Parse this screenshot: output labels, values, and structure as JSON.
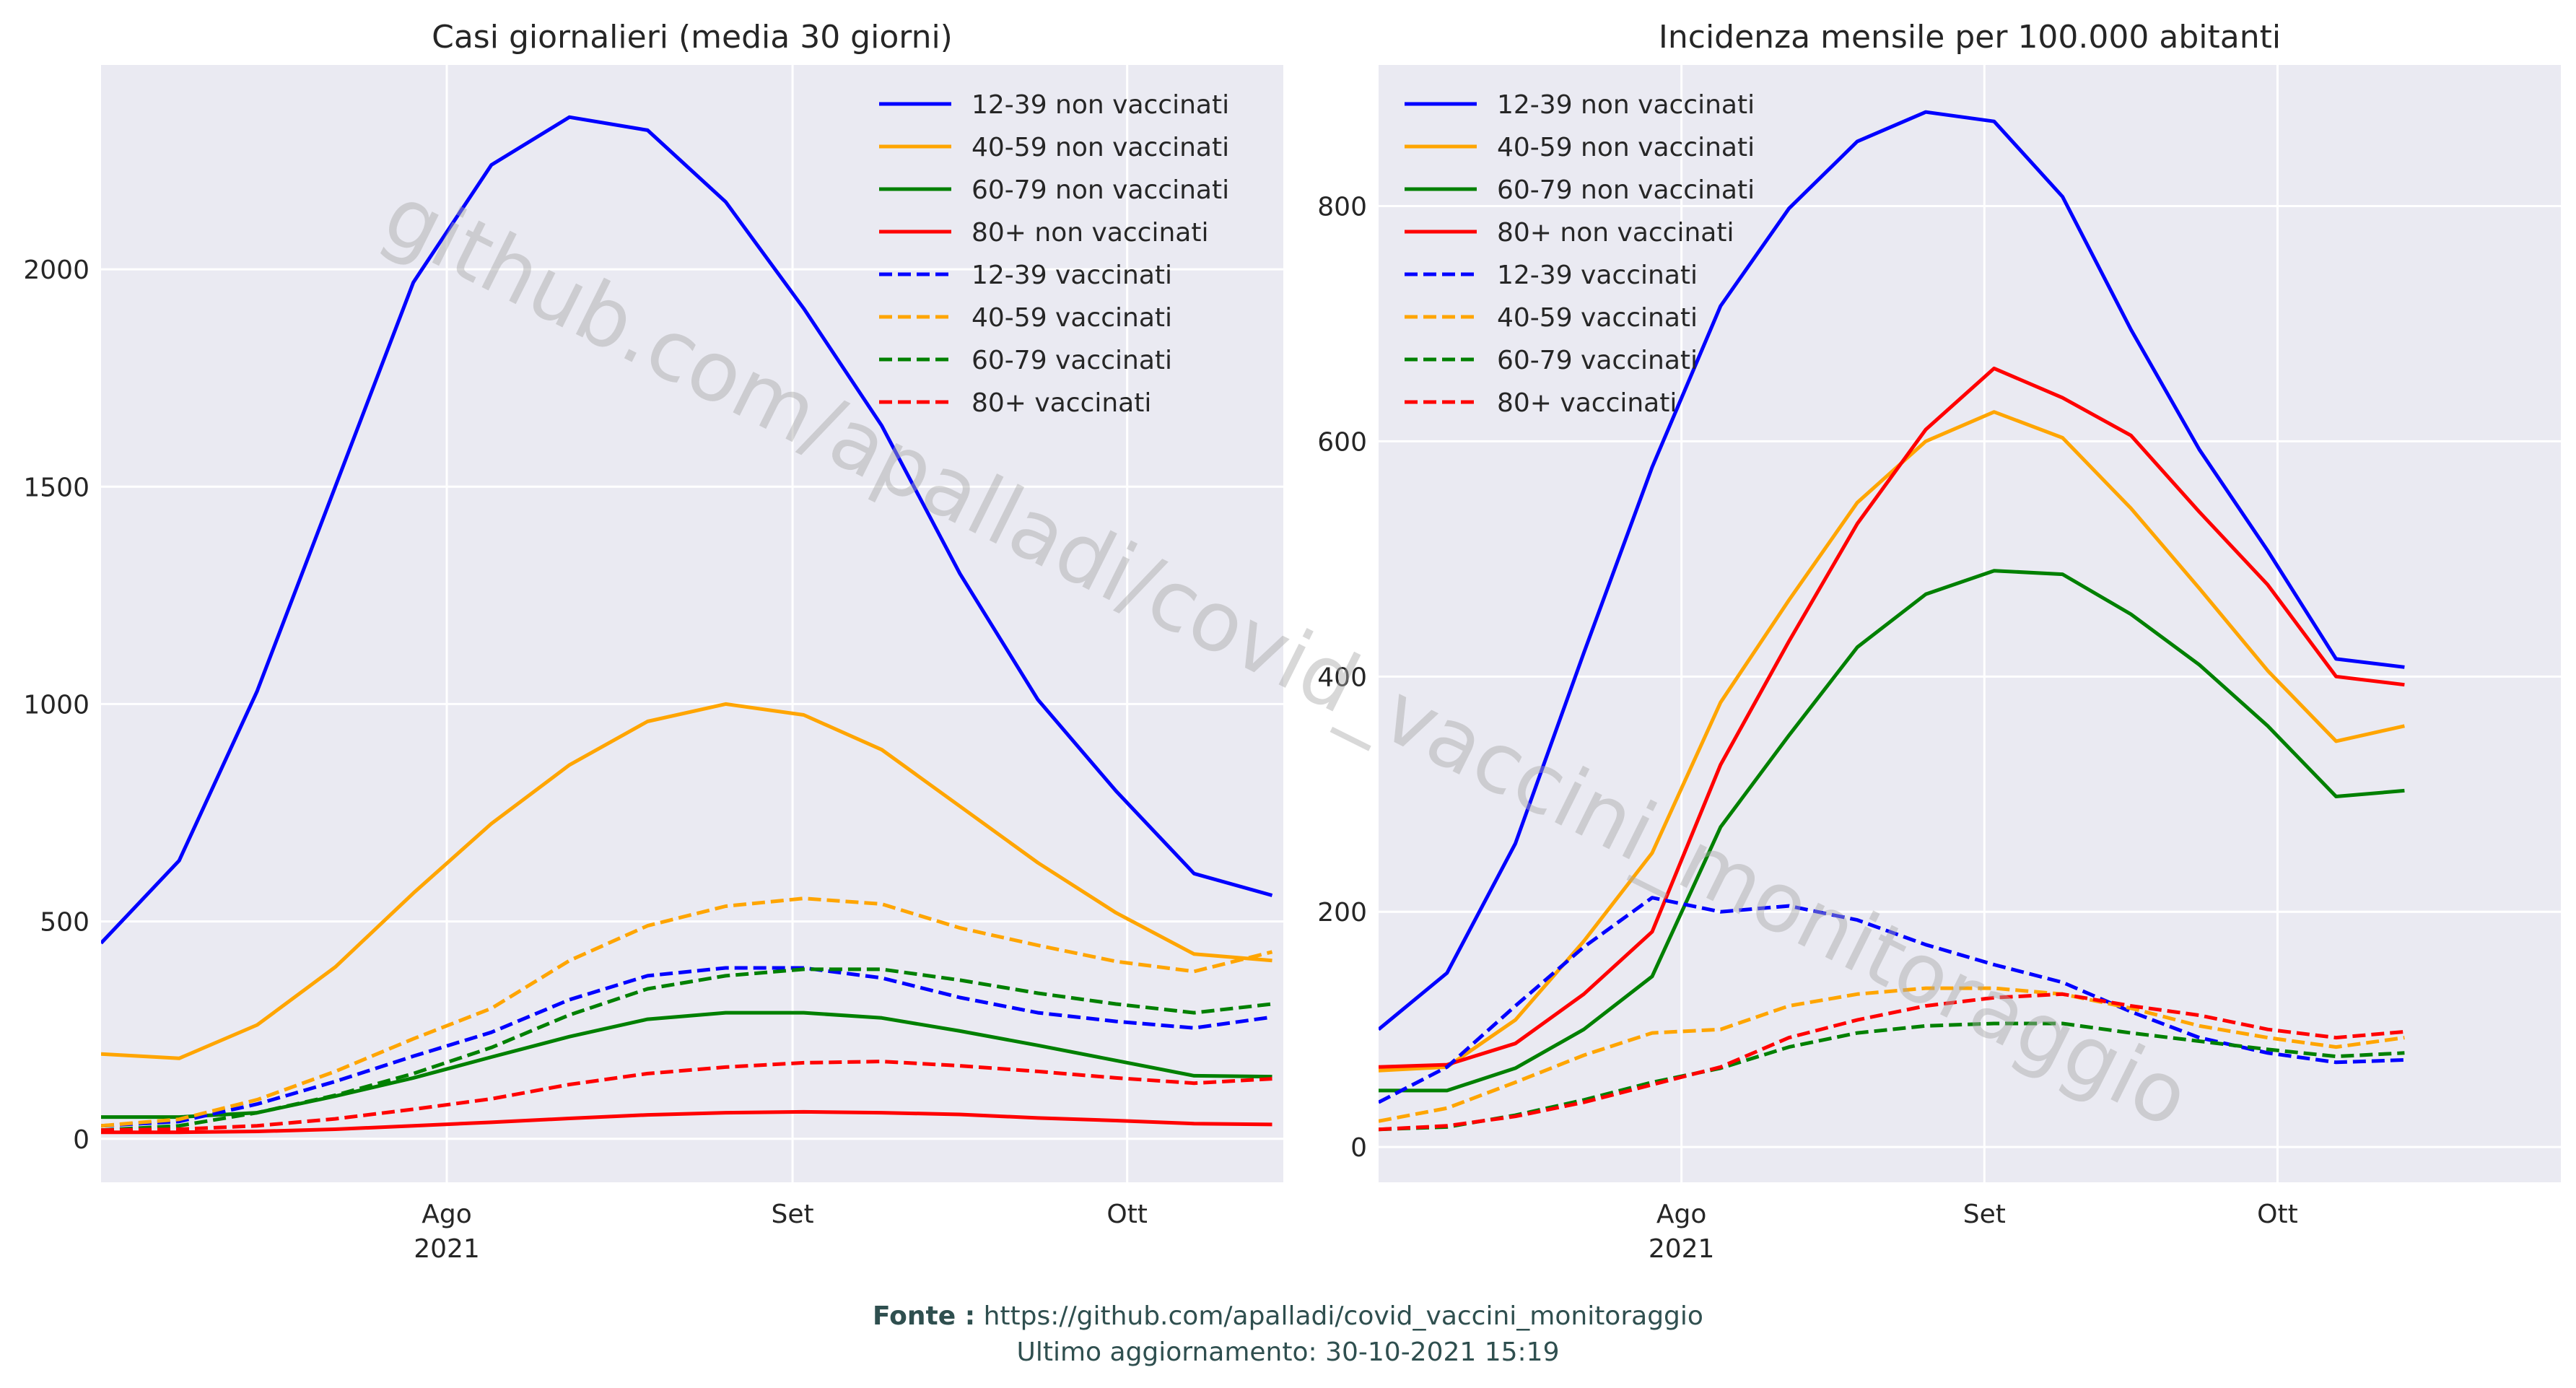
{
  "colors": {
    "12-39": "#0000ff",
    "40-59": "#ffa500",
    "60-79": "#008000",
    "80+": "#ff0000",
    "plot_bg": "#eaeaf2",
    "grid": "#ffffff",
    "footer_text": "#2f4f4f",
    "watermark": "#a9a9a9"
  },
  "watermark": "github.com/apalladi/covid_vaccini_monitoraggio",
  "footer": {
    "source_label": "Fonte :",
    "source_url": "https://github.com/apalladi/covid_vaccini_monitoraggio",
    "updated": "Ultimo aggiornamento: 30-10-2021 15:19"
  },
  "chart_data": [
    {
      "type": "line",
      "title": "Casi giornalieri (media 30 giorni)",
      "x_dates": [
        "2021-07-01",
        "2021-07-08",
        "2021-07-15",
        "2021-07-22",
        "2021-07-29",
        "2021-08-05",
        "2021-08-12",
        "2021-08-19",
        "2021-08-26",
        "2021-09-02",
        "2021-09-09",
        "2021-09-16",
        "2021-09-23",
        "2021-09-30",
        "2021-10-07",
        "2021-10-14",
        "2021-10-21",
        "2021-10-28"
      ],
      "xlim": [
        "2021-07-01",
        "2021-10-15"
      ],
      "ylim": [
        -100,
        2470
      ],
      "yticks": [
        0,
        500,
        1000,
        1500,
        2000
      ],
      "xticks": [
        {
          "date": "2021-08-01",
          "label": "Ago",
          "sublabel": "2021"
        },
        {
          "date": "2021-09-01",
          "label": "Set",
          "sublabel": ""
        },
        {
          "date": "2021-10-01",
          "label": "Ott",
          "sublabel": ""
        }
      ],
      "legend_position": "upper-right",
      "series": [
        {
          "name": "12-39 non vaccinati",
          "group": "12-39",
          "dashed": false,
          "values": [
            450,
            640,
            1030,
            1500,
            1970,
            2240,
            2350,
            2320,
            2155,
            1910,
            1640,
            1300,
            1010,
            800,
            610,
            560,
            null,
            null
          ]
        },
        {
          "name": "40-59 non vaccinati",
          "group": "40-59",
          "dashed": false,
          "values": [
            195,
            185,
            262,
            395,
            565,
            725,
            860,
            960,
            1000,
            975,
            895,
            765,
            635,
            520,
            425,
            410,
            null,
            null
          ]
        },
        {
          "name": "60-79 non vaccinati",
          "group": "60-79",
          "dashed": false,
          "values": [
            50,
            50,
            60,
            98,
            140,
            188,
            235,
            275,
            290,
            290,
            278,
            248,
            215,
            180,
            145,
            143,
            null,
            null
          ]
        },
        {
          "name": "80+ non vaccinati",
          "group": "80+",
          "dashed": false,
          "values": [
            15,
            15,
            17,
            22,
            30,
            38,
            47,
            55,
            60,
            62,
            60,
            56,
            48,
            42,
            35,
            33,
            null,
            null
          ]
        },
        {
          "name": "12-39 vaccinati",
          "group": "12-39",
          "dashed": true,
          "values": [
            30,
            40,
            80,
            132,
            190,
            245,
            320,
            375,
            393,
            393,
            370,
            325,
            290,
            270,
            255,
            280,
            null,
            null
          ]
        },
        {
          "name": "40-59 vaccinati",
          "group": "40-59",
          "dashed": true,
          "values": [
            30,
            45,
            90,
            155,
            230,
            300,
            410,
            490,
            535,
            553,
            540,
            485,
            445,
            408,
            385,
            430,
            null,
            null
          ]
        },
        {
          "name": "60-79 vaccinati",
          "group": "60-79",
          "dashed": true,
          "values": [
            20,
            30,
            60,
            100,
            150,
            210,
            285,
            345,
            375,
            390,
            390,
            365,
            335,
            310,
            290,
            310,
            null,
            null
          ]
        },
        {
          "name": "80+ vaccinati",
          "group": "80+",
          "dashed": true,
          "values": [
            20,
            22,
            30,
            46,
            68,
            92,
            125,
            150,
            165,
            175,
            178,
            168,
            155,
            140,
            128,
            138,
            null,
            null
          ]
        }
      ]
    },
    {
      "type": "line",
      "title": "Incidenza mensile per 100.000 abitanti",
      "x_dates": [
        "2021-07-01",
        "2021-07-08",
        "2021-07-15",
        "2021-07-22",
        "2021-07-29",
        "2021-08-05",
        "2021-08-12",
        "2021-08-19",
        "2021-08-26",
        "2021-09-02",
        "2021-09-09",
        "2021-09-16",
        "2021-09-23",
        "2021-09-30",
        "2021-10-07",
        "2021-10-14",
        "2021-10-21",
        "2021-10-28"
      ],
      "xlim": [
        "2021-07-01",
        "2021-10-30"
      ],
      "ylim": [
        -30,
        920
      ],
      "yticks": [
        0,
        200,
        400,
        600,
        800
      ],
      "xticks": [
        {
          "date": "2021-08-01",
          "label": "Ago",
          "sublabel": "2021"
        },
        {
          "date": "2021-09-01",
          "label": "Set",
          "sublabel": ""
        },
        {
          "date": "2021-10-01",
          "label": "Ott",
          "sublabel": ""
        }
      ],
      "legend_position": "upper-left",
      "series": [
        {
          "name": "12-39 non vaccinati",
          "group": "12-39",
          "dashed": false,
          "values": [
            100,
            148,
            258,
            420,
            578,
            715,
            798,
            855,
            880,
            872,
            808,
            695,
            593,
            507,
            415,
            408,
            null,
            null
          ]
        },
        {
          "name": "40-59 non vaccinati",
          "group": "40-59",
          "dashed": false,
          "values": [
            65,
            68,
            108,
            175,
            250,
            378,
            465,
            548,
            600,
            625,
            603,
            543,
            475,
            405,
            345,
            358,
            null,
            null
          ]
        },
        {
          "name": "60-79 non vaccinati",
          "group": "60-79",
          "dashed": false,
          "values": [
            48,
            48,
            67,
            100,
            145,
            272,
            350,
            425,
            470,
            490,
            487,
            453,
            410,
            358,
            298,
            303,
            null,
            null
          ]
        },
        {
          "name": "80+ non vaccinati",
          "group": "80+",
          "dashed": false,
          "values": [
            68,
            70,
            88,
            130,
            183,
            325,
            430,
            530,
            610,
            662,
            637,
            605,
            540,
            478,
            400,
            393,
            null,
            null
          ]
        },
        {
          "name": "12-39 vaccinati",
          "group": "12-39",
          "dashed": true,
          "values": [
            38,
            68,
            120,
            170,
            212,
            200,
            205,
            193,
            172,
            155,
            140,
            115,
            93,
            80,
            72,
            74,
            null,
            null
          ]
        },
        {
          "name": "40-59 vaccinati",
          "group": "40-59",
          "dashed": true,
          "values": [
            22,
            33,
            55,
            78,
            97,
            100,
            120,
            130,
            135,
            135,
            130,
            118,
            103,
            93,
            85,
            93,
            null,
            null
          ]
        },
        {
          "name": "60-79 vaccinati",
          "group": "60-79",
          "dashed": true,
          "values": [
            15,
            17,
            27,
            40,
            55,
            67,
            85,
            97,
            103,
            105,
            105,
            97,
            90,
            83,
            77,
            80,
            null,
            null
          ]
        },
        {
          "name": "80+ vaccinati",
          "group": "80+",
          "dashed": true,
          "values": [
            15,
            18,
            26,
            38,
            53,
            68,
            93,
            108,
            120,
            127,
            130,
            120,
            112,
            100,
            93,
            98,
            null,
            null
          ]
        }
      ]
    }
  ]
}
